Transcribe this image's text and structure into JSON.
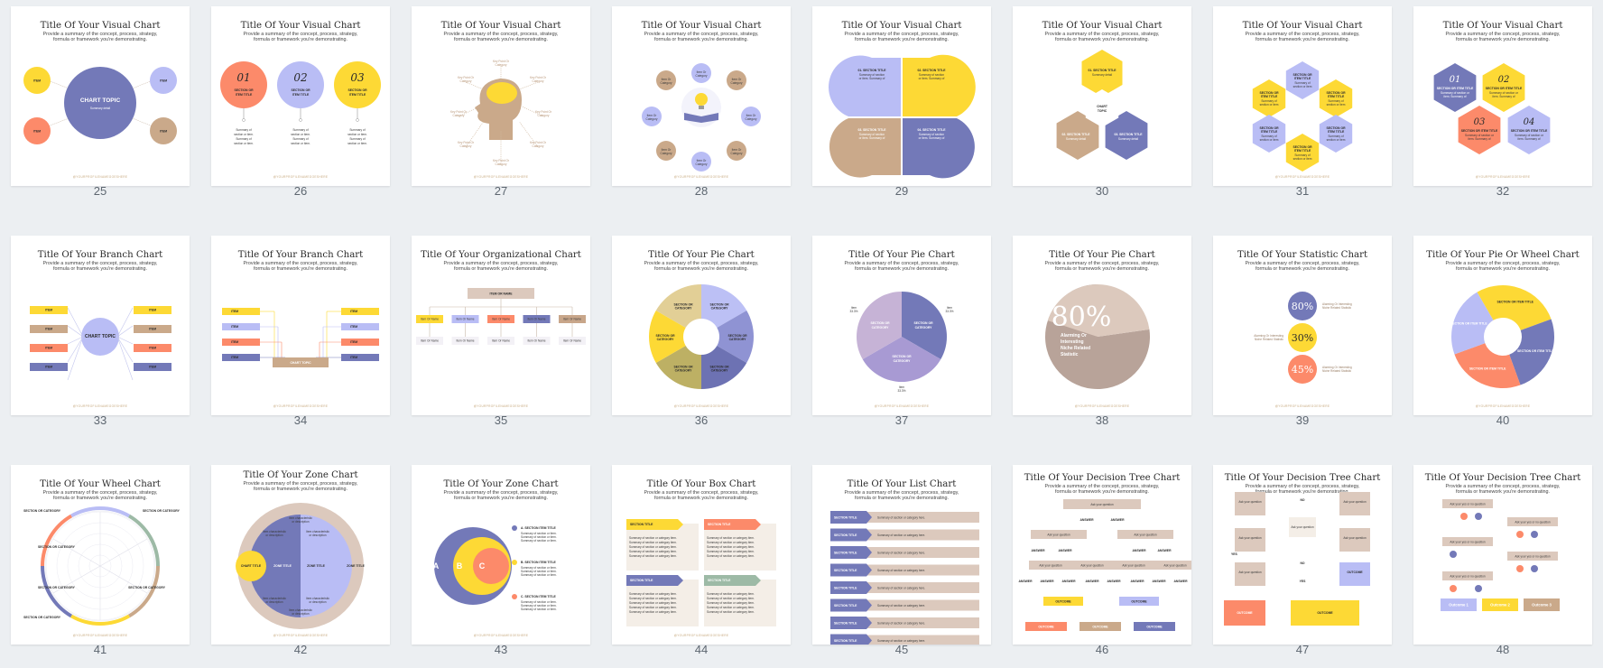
{
  "colors": {
    "yellow": "#fdd935",
    "periwinkle": "#b9bdf5",
    "indigo": "#7379b8",
    "coral": "#fc8a6a",
    "tan": "#caa98a",
    "mocha": "#b8a399",
    "sage": "#9dbaa6",
    "background": "#eceff2"
  },
  "common": {
    "subtitle_line1": "Provide a summary of the concept, process, strategy,",
    "subtitle_line2": "formula or framework you're demonstrating.",
    "footer": "@YOURPROFILENAMEGOESHERE",
    "item": "ITEM",
    "item_name": "Item Or Name",
    "section_item_title": "SECTION OR ITEM TITLE",
    "section_title": "SECTION TITLE",
    "section_category": "SECTION OR CATEGORY",
    "summary": "Summary of section or item.",
    "summary_short": "Summary detail",
    "summary_category": "Summary of section or category here.",
    "summary_category_item": "Summary of section or category item.",
    "answer": "ANSWER",
    "ask_question": "Ask your question",
    "ask_question_here": "Ask your yes or no question",
    "outcome": "OUTCOME",
    "yes": "YES",
    "no": "NO",
    "key_point": "Key Point Or Category",
    "item_point": "Item Point Or Category",
    "stat": "Alarming Or Interesting Niche Related Statistic"
  },
  "slides": [
    {
      "number": "25",
      "title": "Title Of Your Visual Chart",
      "chart_topic": "CHART TOPIC",
      "summary": "Summary detail"
    },
    {
      "number": "26",
      "title": "Title Of Your Visual Chart",
      "nums": [
        "01",
        "02",
        "03"
      ]
    },
    {
      "number": "27",
      "title": "Title Of Your Visual Chart"
    },
    {
      "number": "28",
      "title": "Title Of Your Visual Chart",
      "item_label": "Item Or Category"
    },
    {
      "number": "29",
      "title": "Title Of Your Visual Chart",
      "sections": [
        "01. SECTION TITLE",
        "02. SECTION TITLE",
        "03. SECTION TITLE",
        "04. SECTION TITLE"
      ]
    },
    {
      "number": "30",
      "title": "Title Of Your Visual Chart",
      "center": "CHART TOPIC",
      "sections": [
        "01. SECTION TITLE",
        "02. SECTION TITLE",
        "03. SECTION TITLE"
      ]
    },
    {
      "number": "31",
      "title": "Title Of Your Visual Chart"
    },
    {
      "number": "32",
      "title": "Title Of Your Visual Chart",
      "nums": [
        "01",
        "02",
        "03",
        "04"
      ]
    },
    {
      "number": "33",
      "title": "Title Of Your Branch Chart",
      "center": "CHART TOPIC"
    },
    {
      "number": "34",
      "title": "Title Of Your Branch Chart",
      "center": "CHART TOPIC"
    },
    {
      "number": "35",
      "title": "Title Of Your Organizational Chart",
      "top": "ITEM OR NAME"
    },
    {
      "number": "36",
      "title": "Title Of Your Pie Chart"
    },
    {
      "number": "37",
      "title": "Title Of Your Pie Chart",
      "labels": [
        "Item 33.3%",
        "Item 33.3%",
        "Item 33.3%"
      ]
    },
    {
      "number": "38",
      "title": "Title Of Your Pie Chart",
      "percent": "80%",
      "stat_lines": [
        "Alarming Or",
        "Interesting",
        "Niche Related",
        "Statistic"
      ]
    },
    {
      "number": "39",
      "title": "Title Of Your Statistic Chart",
      "stats": [
        "80%",
        "30%",
        "45%"
      ]
    },
    {
      "number": "40",
      "title": "Title Of Your Pie Or Wheel Chart"
    },
    {
      "number": "41",
      "title": "Title Of Your Wheel Chart"
    },
    {
      "number": "42",
      "title": "Title Of Your Zone Chart",
      "zone_title": "ZONE TITLE",
      "chart_title": "CHART TITLE"
    },
    {
      "number": "43",
      "title": "Title Of Your Zone Chart",
      "legend": [
        "A. SECTION ITEM TITLE",
        "B. SECTION ITEM TITLE",
        "C. SECTION ITEM TITLE"
      ],
      "letters": [
        "A",
        "B",
        "C"
      ]
    },
    {
      "number": "44",
      "title": "Title Of Your Box Chart"
    },
    {
      "number": "45",
      "title": "Title Of Your List Chart"
    },
    {
      "number": "46",
      "title": "Title Of Your Decision Tree Chart"
    },
    {
      "number": "47",
      "title": "Title Of Your Decision Tree Chart"
    },
    {
      "number": "48",
      "title": "Title Of Your Decision Tree Chart",
      "outcomes": [
        "Outcome 1",
        "Outcome 2",
        "Outcome 3"
      ]
    }
  ]
}
